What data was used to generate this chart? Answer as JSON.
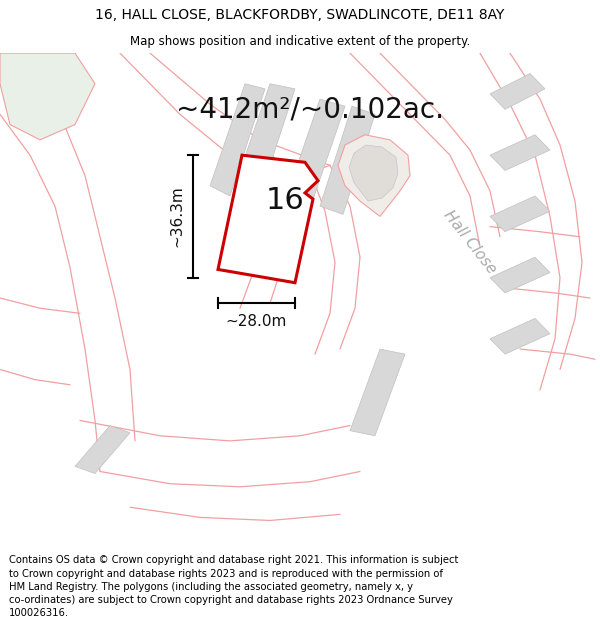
{
  "title_line1": "16, HALL CLOSE, BLACKFORDBY, SWADLINCOTE, DE11 8AY",
  "title_line2": "Map shows position and indicative extent of the property.",
  "area_text": "~412m²/~0.102ac.",
  "dim_width": "~28.0m",
  "dim_height": "~36.3m",
  "plot_label": "16",
  "road_label": "Hall Close",
  "footer_lines": [
    "Contains OS data © Crown copyright and database right 2021. This information is subject",
    "to Crown copyright and database rights 2023 and is reproduced with the permission of",
    "HM Land Registry. The polygons (including the associated geometry, namely x, y",
    "co-ordinates) are subject to Crown copyright and database rights 2023 Ordnance Survey",
    "100026316."
  ],
  "bg_color": "#ffffff",
  "map_bg": "#f9f9f7",
  "plot_fill": "#ffffff",
  "plot_edge": "#cc0000",
  "gray_fill": "#d8d8d8",
  "gray_edge": "#c0c0c0",
  "pink_line": "#f0a0a0",
  "green_fill": "#e8f0e8",
  "title_fontsize": 10,
  "subtitle_fontsize": 8.5,
  "footer_fontsize": 7.2,
  "area_fontsize": 20,
  "label_fontsize": 22,
  "dim_fontsize": 11,
  "road_label_fontsize": 11
}
